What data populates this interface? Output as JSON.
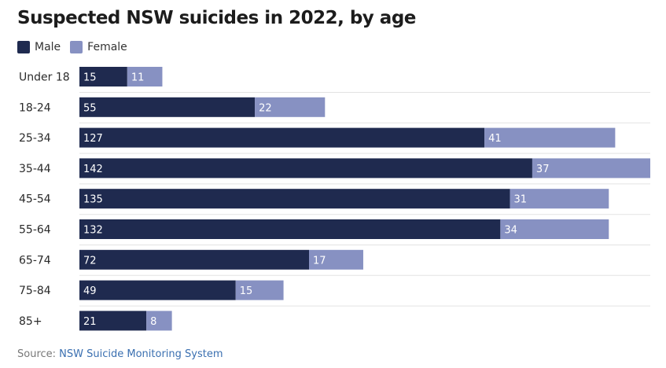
{
  "colors": {
    "male": "#1f2a4f",
    "female": "#8791c2",
    "grid": "#e3e3e3",
    "source_link": "#3a6fb0"
  },
  "chart_data": {
    "type": "bar",
    "orientation": "horizontal",
    "stacked": true,
    "title": "Suspected NSW suicides in 2022, by age",
    "legend_position": "top-left",
    "categories": [
      "Under 18",
      "18-24",
      "25-34",
      "35-44",
      "45-54",
      "55-64",
      "65-74",
      "75-84",
      "85+"
    ],
    "series": [
      {
        "name": "Male",
        "values": [
          15,
          55,
          127,
          142,
          135,
          132,
          72,
          49,
          21
        ]
      },
      {
        "name": "Female",
        "values": [
          11,
          22,
          41,
          37,
          31,
          34,
          17,
          15,
          8
        ]
      }
    ],
    "xlim": [
      0,
      179
    ],
    "grid": true
  },
  "source": {
    "label": "Source:",
    "link_text": "NSW Suicide Monitoring System"
  }
}
